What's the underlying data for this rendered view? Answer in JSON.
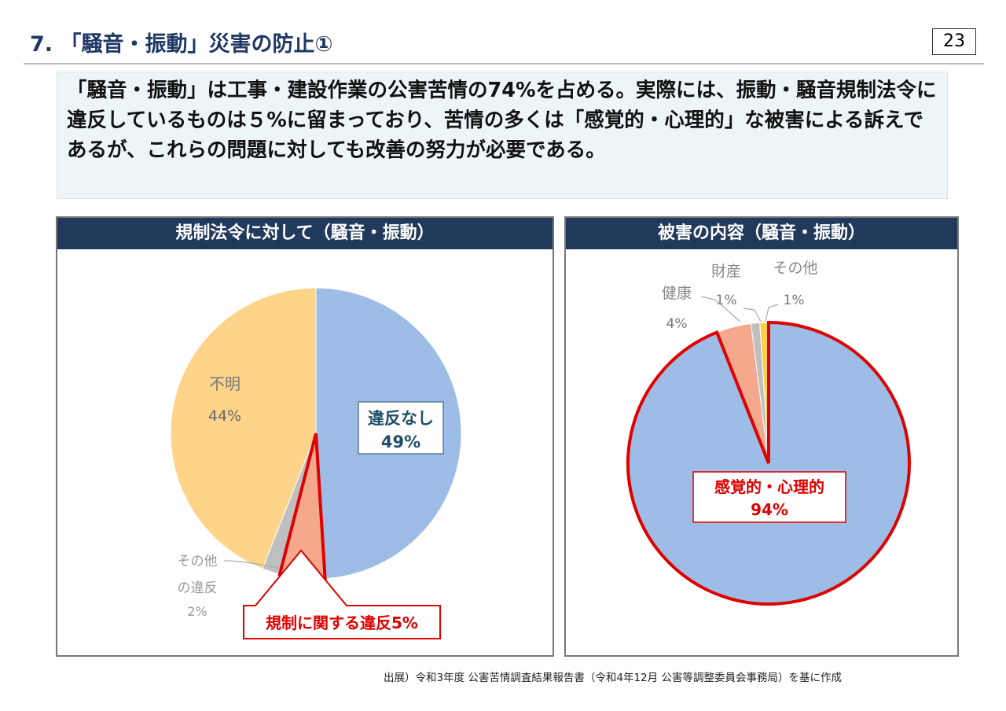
{
  "title": "7. 「騒音・振動」災害の防止①",
  "page_number": "23",
  "summary": "「騒音・振動」は工事・建設作業の公害苦情の74%を占める。実際には、振動・騒音規制法令に違反しているものは５%に留まっており、苦情の多くは「感覚的・心理的」な被害による訴えであるが、これらの問題に対しても改善の努力が必要である。",
  "source": "出展）令和3年度 公害苦情調査結果報告書（令和4年12月 公害等調整委員会事務局）を基に作成",
  "chart_data": [
    {
      "type": "pie",
      "title": "規制法令に対して（騒音・振動）",
      "slices": [
        {
          "label": "違反なし",
          "value": 49,
          "value_label": "49%",
          "color": "#9dbde6"
        },
        {
          "label": "規制に関する違反",
          "value": 5,
          "value_label": "5%",
          "color": "#f4a88e",
          "callout": "規制に関する違反5%"
        },
        {
          "label": "その他の違反",
          "value": 2,
          "value_label": "2%",
          "color": "#bfbfbf"
        },
        {
          "label": "不明",
          "value": 44,
          "value_label": "44%",
          "color": "#fdd48a"
        }
      ]
    },
    {
      "type": "pie",
      "title": "被害の内容（騒音・振動）",
      "slices": [
        {
          "label": "感覚的・心理的",
          "value": 94,
          "value_label": "94%",
          "color": "#9dbde6"
        },
        {
          "label": "健康",
          "value": 4,
          "value_label": "4%",
          "color": "#f4a88e"
        },
        {
          "label": "財産",
          "value": 1,
          "value_label": "1%",
          "color": "#bfbfbf"
        },
        {
          "label": "その他",
          "value": 1,
          "value_label": "1%",
          "color": "#fdd04a"
        }
      ]
    }
  ],
  "highlight_color": "#e00000"
}
